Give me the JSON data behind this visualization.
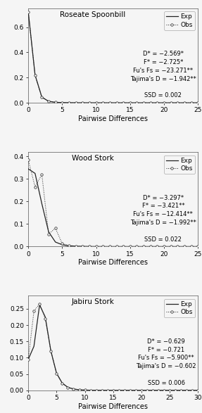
{
  "panels": [
    {
      "title": "Roseate Spoonbill",
      "xlim": [
        0,
        25
      ],
      "xticks": [
        0,
        5,
        10,
        15,
        20,
        25
      ],
      "ylim": [
        0,
        0.75
      ],
      "yticks": [
        0.0,
        0.2,
        0.4,
        0.6
      ],
      "exp_x": [
        0,
        1,
        2,
        3,
        4,
        5,
        6,
        7,
        8,
        9,
        10,
        11,
        12,
        13,
        14,
        15,
        16,
        17,
        18,
        19,
        20,
        21,
        22,
        23,
        24,
        25
      ],
      "exp_y": [
        0.72,
        0.22,
        0.045,
        0.012,
        0.004,
        0.002,
        0.001,
        0.0005,
        0.0002,
        0.0001,
        5e-05,
        2e-05,
        1e-05,
        5e-06,
        2e-06,
        1e-06,
        0.0,
        0.0,
        0.0,
        0.0,
        0.0,
        0.0,
        0.0,
        0.0,
        0.0,
        0.0
      ],
      "obs_x": [
        0,
        1,
        2,
        3,
        4,
        5,
        6,
        7,
        8,
        9,
        10,
        11,
        12,
        13,
        14,
        15,
        16,
        17,
        18,
        19,
        20,
        21,
        22,
        23,
        24,
        25
      ],
      "obs_y": [
        0.72,
        0.22,
        0.045,
        0.012,
        0.004,
        0.002,
        0.001,
        0.0005,
        0.0002,
        0.0001,
        0.0,
        0.0,
        0.0,
        0.0,
        0.0,
        0.0,
        0.0,
        0.0,
        0.0,
        0.0,
        0.0,
        0.0,
        0.0,
        0.0,
        0.0,
        0.0
      ],
      "annotation": "D* = −2.569*\nF* = −2.725*\nFu's Fs = −23.271**\nTajima's D = −1.942**\n\nSSD = 0.002"
    },
    {
      "title": "Wood Stork",
      "xlim": [
        0,
        25
      ],
      "xticks": [
        0,
        5,
        10,
        15,
        20,
        25
      ],
      "ylim": [
        0,
        0.42
      ],
      "yticks": [
        0.0,
        0.1,
        0.2,
        0.3,
        0.4
      ],
      "exp_x": [
        0,
        1,
        2,
        3,
        4,
        5,
        6,
        7,
        8,
        9,
        10,
        11,
        12,
        13,
        14,
        15,
        16,
        17,
        18,
        19,
        20,
        21,
        22,
        23,
        24,
        25
      ],
      "exp_y": [
        0.345,
        0.325,
        0.19,
        0.065,
        0.02,
        0.008,
        0.003,
        0.0015,
        0.0008,
        0.0003,
        0.0001,
        5e-05,
        2e-05,
        1e-05,
        5e-06,
        2e-06,
        0.0,
        0.0,
        0.0,
        0.0,
        0.0,
        0.0,
        0.0,
        0.0,
        0.0,
        0.0
      ],
      "obs_x": [
        0,
        1,
        2,
        3,
        4,
        5,
        6,
        7,
        8,
        9,
        10,
        11,
        12,
        13,
        14,
        15,
        16,
        17,
        18,
        19,
        20,
        21,
        22,
        23,
        24,
        25
      ],
      "obs_y": [
        0.385,
        0.265,
        0.32,
        0.055,
        0.082,
        0.013,
        0.005,
        0.002,
        0.0008,
        0.0003,
        0.0001,
        5e-05,
        2e-05,
        1e-05,
        5e-06,
        2e-06,
        0.0,
        0.0,
        0.0,
        0.0,
        0.0,
        0.0,
        0.0,
        0.0,
        0.0,
        0.0
      ],
      "annotation": "D* = −3.297*\nF* = −3.421**\nFu's Fs = −12.414**\nTajima's D = −1.992**\n\nSSD = 0.022"
    },
    {
      "title": "Jabiru Stork",
      "xlim": [
        0,
        30
      ],
      "xticks": [
        0,
        5,
        10,
        15,
        20,
        25,
        30
      ],
      "ylim": [
        0,
        0.29
      ],
      "yticks": [
        0.0,
        0.05,
        0.1,
        0.15,
        0.2,
        0.25
      ],
      "exp_x": [
        0,
        1,
        2,
        3,
        4,
        5,
        6,
        7,
        8,
        9,
        10,
        11,
        12,
        13,
        14,
        15,
        16,
        17,
        18,
        19,
        20,
        21,
        22,
        23,
        24,
        25,
        26,
        27,
        28,
        29,
        30
      ],
      "exp_y": [
        0.095,
        0.135,
        0.262,
        0.225,
        0.12,
        0.052,
        0.022,
        0.009,
        0.004,
        0.0015,
        0.0006,
        0.0002,
        0.0001,
        5e-05,
        2e-05,
        1e-05,
        0.0,
        0.0,
        0.0,
        0.0,
        0.0,
        0.0,
        0.0,
        0.0,
        0.0,
        0.0,
        0.0,
        0.0,
        0.0,
        0.0,
        0.0
      ],
      "obs_x": [
        0,
        1,
        2,
        3,
        4,
        5,
        6,
        7,
        8,
        9,
        10,
        11,
        12,
        13,
        14,
        15,
        16,
        17,
        18,
        19,
        20,
        21,
        22,
        23,
        24,
        25,
        26,
        27,
        28,
        29,
        30
      ],
      "obs_y": [
        0.095,
        0.243,
        0.265,
        0.22,
        0.12,
        0.052,
        0.022,
        0.009,
        0.004,
        0.0015,
        0.0006,
        0.0002,
        0.0001,
        5e-05,
        2e-05,
        0.0,
        0.0,
        0.0,
        0.0,
        0.0,
        0.0,
        0.0,
        0.0,
        0.0,
        0.0,
        0.0,
        0.0,
        0.0,
        0.0,
        0.0,
        0.0
      ],
      "annotation": "D* = −0.629\nF* = −0.721\nFu's Fs = −5.900**\nTajima's D = −0.602\n\nSSD = 0.006"
    }
  ],
  "line_color": "#222222",
  "obs_marker": "o",
  "obs_markersize": 2.5,
  "legend_exp_label": "Exp",
  "legend_obs_label": "Obs",
  "xlabel": "Pairwise Differences",
  "annotation_fontsize": 6.0,
  "title_fontsize": 7.5,
  "tick_fontsize": 6.5,
  "label_fontsize": 7.0,
  "background_color": "#f5f5f5"
}
